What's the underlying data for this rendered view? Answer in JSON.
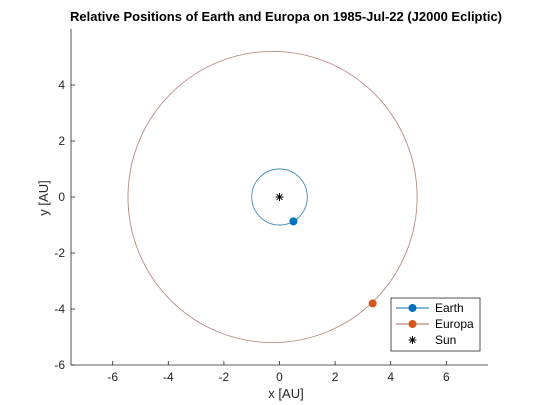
{
  "chart_data": {
    "type": "line",
    "title": "Relative Positions of Earth and Europa on 1985-Jul-22 (J2000 Ecliptic)",
    "xlabel": "x [AU]",
    "ylabel": "y [AU]",
    "xlim": [
      -7.5,
      7.5
    ],
    "ylim": [
      -6,
      6
    ],
    "xticks": [
      -6,
      -4,
      -2,
      0,
      2,
      4,
      6
    ],
    "yticks": [
      -6,
      -4,
      -2,
      0,
      2,
      4
    ],
    "grid": false,
    "legend_position": "bottom-right",
    "series": [
      {
        "name": "Earth",
        "color": "#0072BD",
        "orbit_color": "#3f8fb3",
        "orbit": {
          "type": "circle",
          "center": [
            0,
            0
          ],
          "radius": 1.0
        },
        "position": [
          0.5,
          -0.87
        ]
      },
      {
        "name": "Europa",
        "color": "#D95319",
        "orbit_color": "#b48e82",
        "orbit": {
          "type": "ellipse",
          "center": [
            -0.25,
            0.0
          ],
          "rx": 5.2,
          "ry": 5.2
        },
        "position": [
          3.35,
          -3.8
        ]
      }
    ],
    "sun": {
      "name": "Sun",
      "position": [
        0,
        0
      ],
      "marker": "asterisk",
      "color": "#000000"
    }
  }
}
